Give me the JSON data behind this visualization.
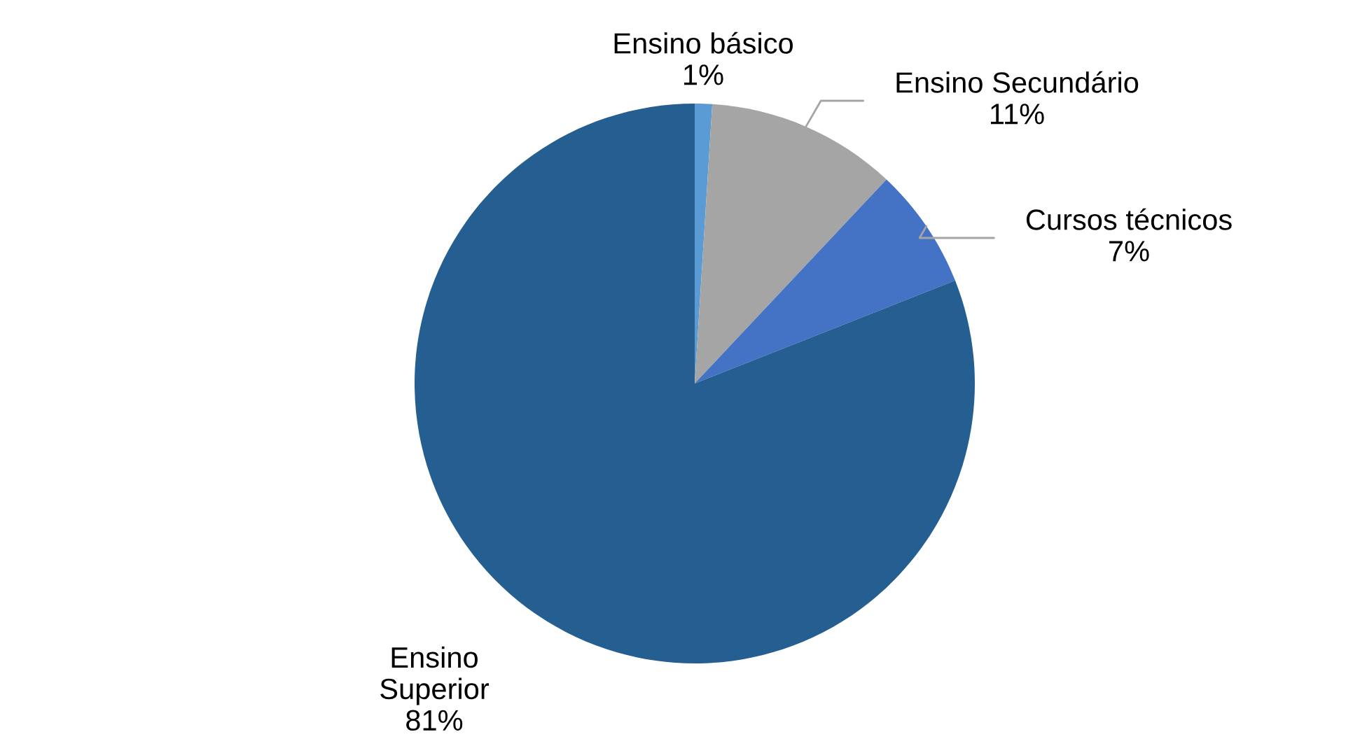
{
  "chart_data": {
    "type": "pie",
    "categories": [
      "Ensino básico",
      "Ensino Secundário",
      "Cursos técnicos",
      "Ensino Superior"
    ],
    "values": [
      1,
      11,
      7,
      81
    ],
    "colors": [
      "#5b9bd5",
      "#a5a5a5",
      "#4472c4",
      "#255e91"
    ],
    "value_labels": [
      "1%",
      "11%",
      "7%",
      "81%"
    ]
  }
}
